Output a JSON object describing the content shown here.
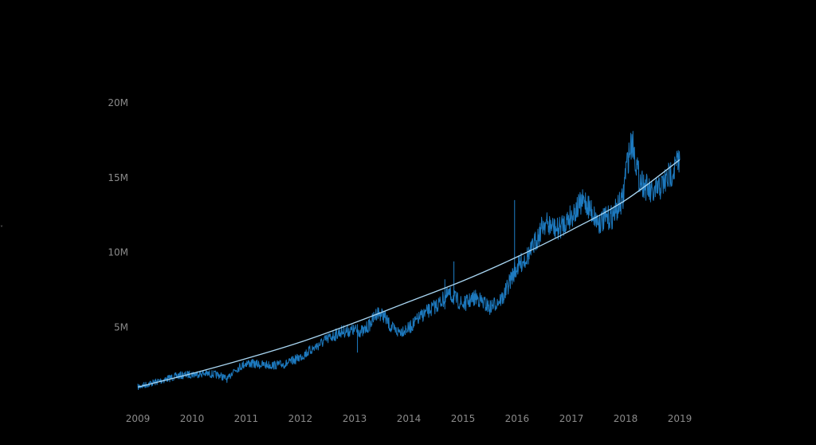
{
  "chart_data": {
    "type": "line",
    "title": "",
    "xlabel": "",
    "ylabel": "",
    "x_range": [
      "2009-01-01",
      "2019-01-01"
    ],
    "ylim": [
      0,
      20000000
    ],
    "x_ticks": [
      "2009",
      "2010",
      "2011",
      "2012",
      "2013",
      "2014",
      "2015",
      "2016",
      "2017",
      "2018",
      "2019"
    ],
    "y_ticks": [
      {
        "value": 5000000,
        "label": "5M"
      },
      {
        "value": 10000000,
        "label": "10M"
      },
      {
        "value": 15000000,
        "label": "15M"
      },
      {
        "value": 20000000,
        "label": "20M"
      }
    ],
    "grid": false,
    "legend": "none",
    "colors": {
      "background": "#000000",
      "series": "#1f7fc8",
      "trend": "#a9d6f2",
      "tick_text": "#8a8a8a"
    },
    "series": [
      {
        "x": [
          "2009-01-01",
          "2009-04-01",
          "2009-07-01",
          "2009-10-01",
          "2010-01-01",
          "2010-04-01",
          "2010-07-01",
          "2010-09-01",
          "2010-10-01",
          "2011-01-01",
          "2011-04-01",
          "2011-07-01",
          "2011-10-01",
          "2012-01-01",
          "2012-04-01",
          "2012-07-01",
          "2012-10-01",
          "2013-01-01",
          "2013-03-01",
          "2013-04-15",
          "2013-06-01",
          "2013-07-15",
          "2013-09-01",
          "2013-10-15",
          "2014-01-01",
          "2014-04-01",
          "2014-07-01",
          "2014-10-01",
          "2015-01-01",
          "2015-04-01",
          "2015-07-01",
          "2015-10-01",
          "2015-12-01",
          "2016-01-01",
          "2016-04-01",
          "2016-07-01",
          "2016-10-01",
          "2017-01-01",
          "2017-04-01",
          "2017-07-01",
          "2017-10-01",
          "2017-12-15",
          "2018-01-01",
          "2018-02-15",
          "2018-04-01",
          "2018-07-01",
          "2018-10-01",
          "2019-01-01"
        ],
        "values": [
          1000000,
          1250000,
          1500000,
          1750000,
          1850000,
          1900000,
          1800000,
          1500000,
          2050000,
          2600000,
          2500000,
          2450000,
          2550000,
          3000000,
          3600000,
          4200000,
          4700000,
          4800000,
          4700000,
          5200000,
          6000000,
          5800000,
          5000000,
          4700000,
          4900000,
          5800000,
          6400000,
          7200000,
          6500000,
          7000000,
          6300000,
          7000000,
          8500000,
          9000000,
          10000000,
          12000000,
          11500000,
          12500000,
          13500000,
          12000000,
          12400000,
          13500000,
          15500000,
          17500000,
          15000000,
          13800000,
          14800000,
          16200000
        ]
      },
      {
        "x": [
          "2009-01-01",
          "2010-01-01",
          "2011-01-01",
          "2012-01-01",
          "2013-01-01",
          "2014-01-01",
          "2015-01-01",
          "2016-01-01",
          "2017-01-01",
          "2018-01-01",
          "2019-01-01"
        ],
        "values": [
          1000000,
          1900000,
          2900000,
          4000000,
          5300000,
          6700000,
          8100000,
          9700000,
          11500000,
          13500000,
          16200000
        ]
      }
    ]
  }
}
